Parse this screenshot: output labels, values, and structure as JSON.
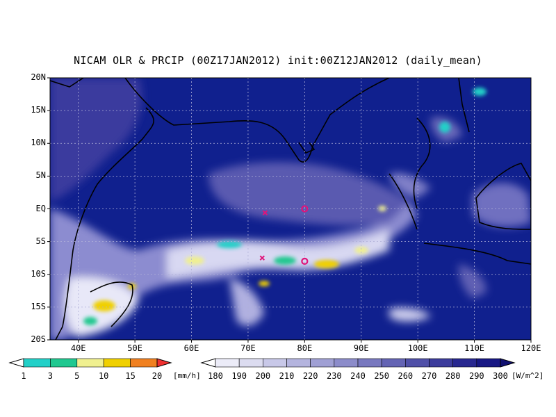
{
  "title": "NICAM OLR & PRCIP (00Z17JAN2012) init:00Z12JAN2012 (daily_mean)",
  "map": {
    "lon_range": [
      35,
      120
    ],
    "lat_range": [
      -20,
      20
    ],
    "lat_labels": [
      "20N",
      "15N",
      "10N",
      "5N",
      "EQ",
      "5S",
      "10S",
      "15S",
      "20S"
    ],
    "lon_labels": [
      "40E",
      "50E",
      "60E",
      "70E",
      "80E",
      "90E",
      "100E",
      "110E",
      "120E"
    ],
    "grid": "dotted",
    "colors": {
      "ocean_clear": "#0f1c8c",
      "land_line": "#000000",
      "marker": "#e0147a"
    },
    "markers": [
      {
        "type": "x",
        "lon": 73,
        "lat": -0.6
      },
      {
        "type": "x",
        "lon": 72.5,
        "lat": -7.5
      },
      {
        "type": "o",
        "lon": 80,
        "lat": 0
      },
      {
        "type": "o",
        "lon": 80,
        "lat": -8
      }
    ]
  },
  "precip_colorbar": {
    "labels": [
      "1",
      "3",
      "5",
      "10",
      "15",
      "20"
    ],
    "unit": "[mm/h]",
    "colors": [
      "#ffffff",
      "#22d0c8",
      "#20c890",
      "#f0f090",
      "#f0d000",
      "#f08020",
      "#f03030"
    ]
  },
  "olr_colorbar": {
    "labels": [
      "180",
      "190",
      "200",
      "210",
      "220",
      "230",
      "240",
      "250",
      "260",
      "270",
      "280",
      "290",
      "300"
    ],
    "unit": "[W/m^2]",
    "colors": [
      "#ffffff",
      "#ececf8",
      "#dcdcf0",
      "#c8c8e8",
      "#b4b4de",
      "#a0a0d4",
      "#8c8cca",
      "#7878bf",
      "#6464b4",
      "#5050a8",
      "#3c3c9c",
      "#282890",
      "#181884",
      "#101070"
    ]
  }
}
